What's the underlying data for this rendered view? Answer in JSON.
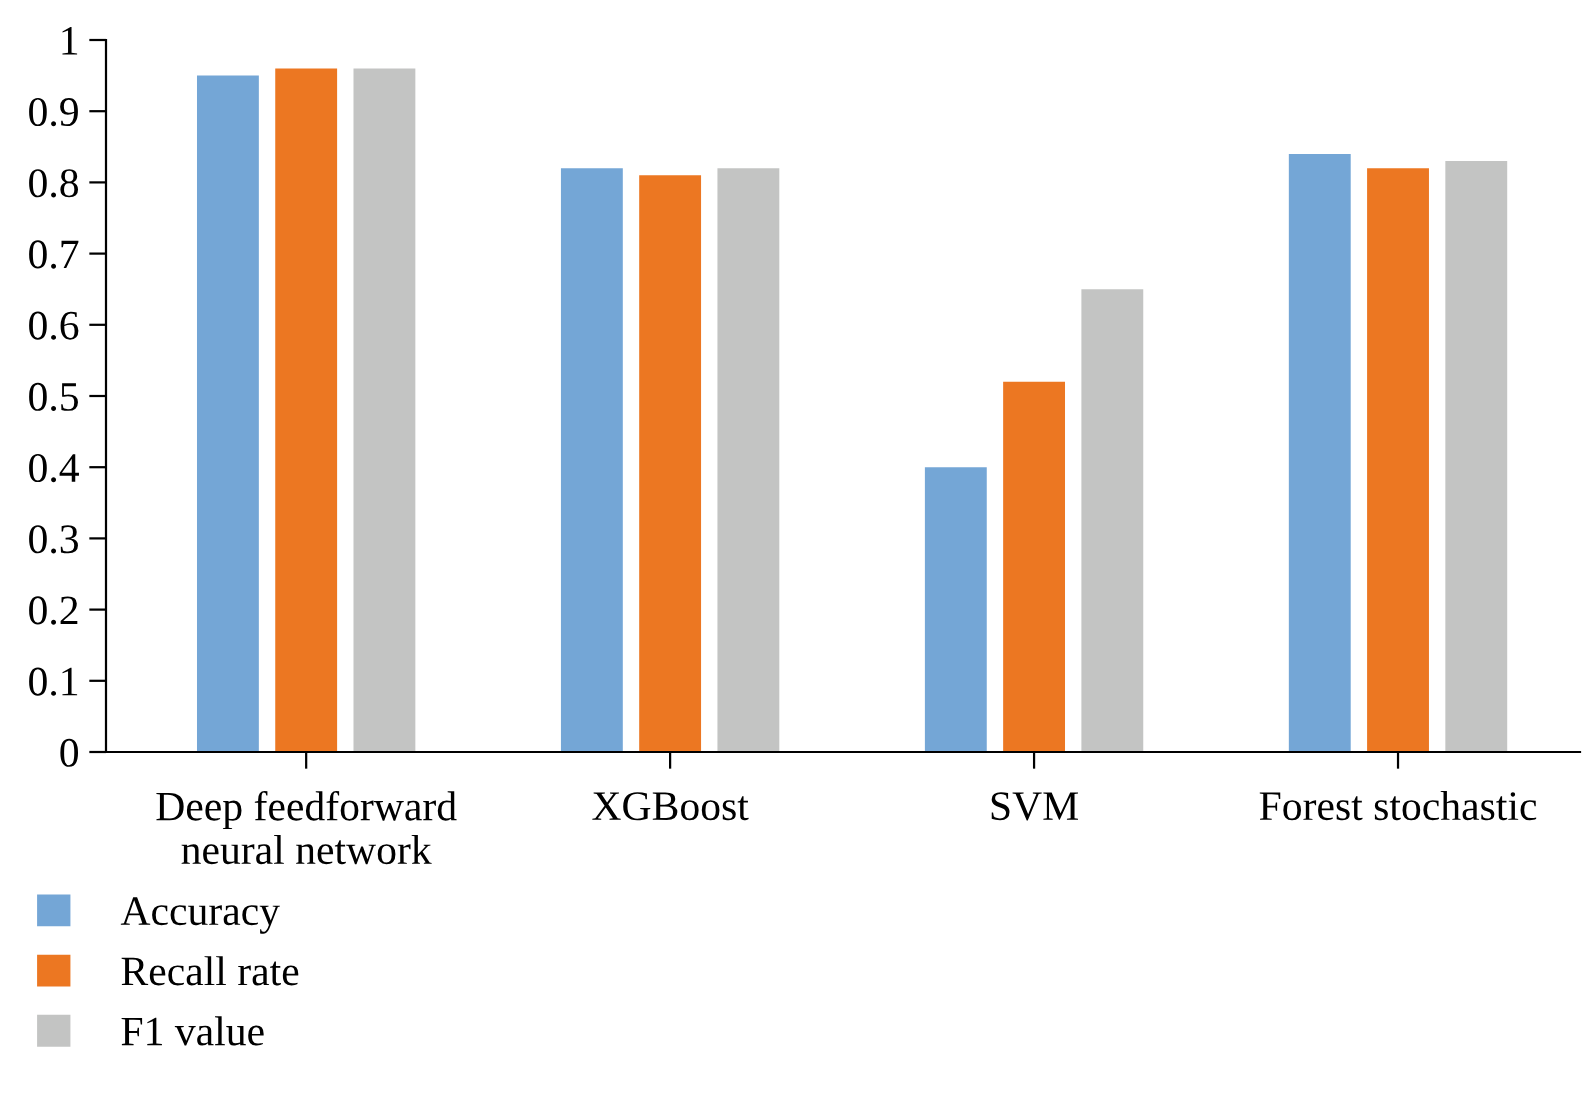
{
  "chart_data": {
    "type": "bar",
    "categories": [
      "Deep feedforward\nneural network",
      "XGBoost",
      "SVM",
      "Forest stochastic"
    ],
    "series": [
      {
        "name": "Accuracy",
        "color": "#74a6d6",
        "values": [
          0.95,
          0.82,
          0.4,
          0.84
        ]
      },
      {
        "name": "Recall rate",
        "color": "#ec7722",
        "values": [
          0.96,
          0.81,
          0.52,
          0.82
        ]
      },
      {
        "name": "F1 value",
        "color": "#c3c4c3",
        "values": [
          0.96,
          0.82,
          0.65,
          0.83
        ]
      }
    ],
    "ylim": [
      0,
      1
    ],
    "yticks": [
      0,
      0.1,
      0.2,
      0.3,
      0.4,
      0.5,
      0.6,
      0.7,
      0.8,
      0.9,
      1
    ],
    "grid": false,
    "legend": "bottom left"
  }
}
